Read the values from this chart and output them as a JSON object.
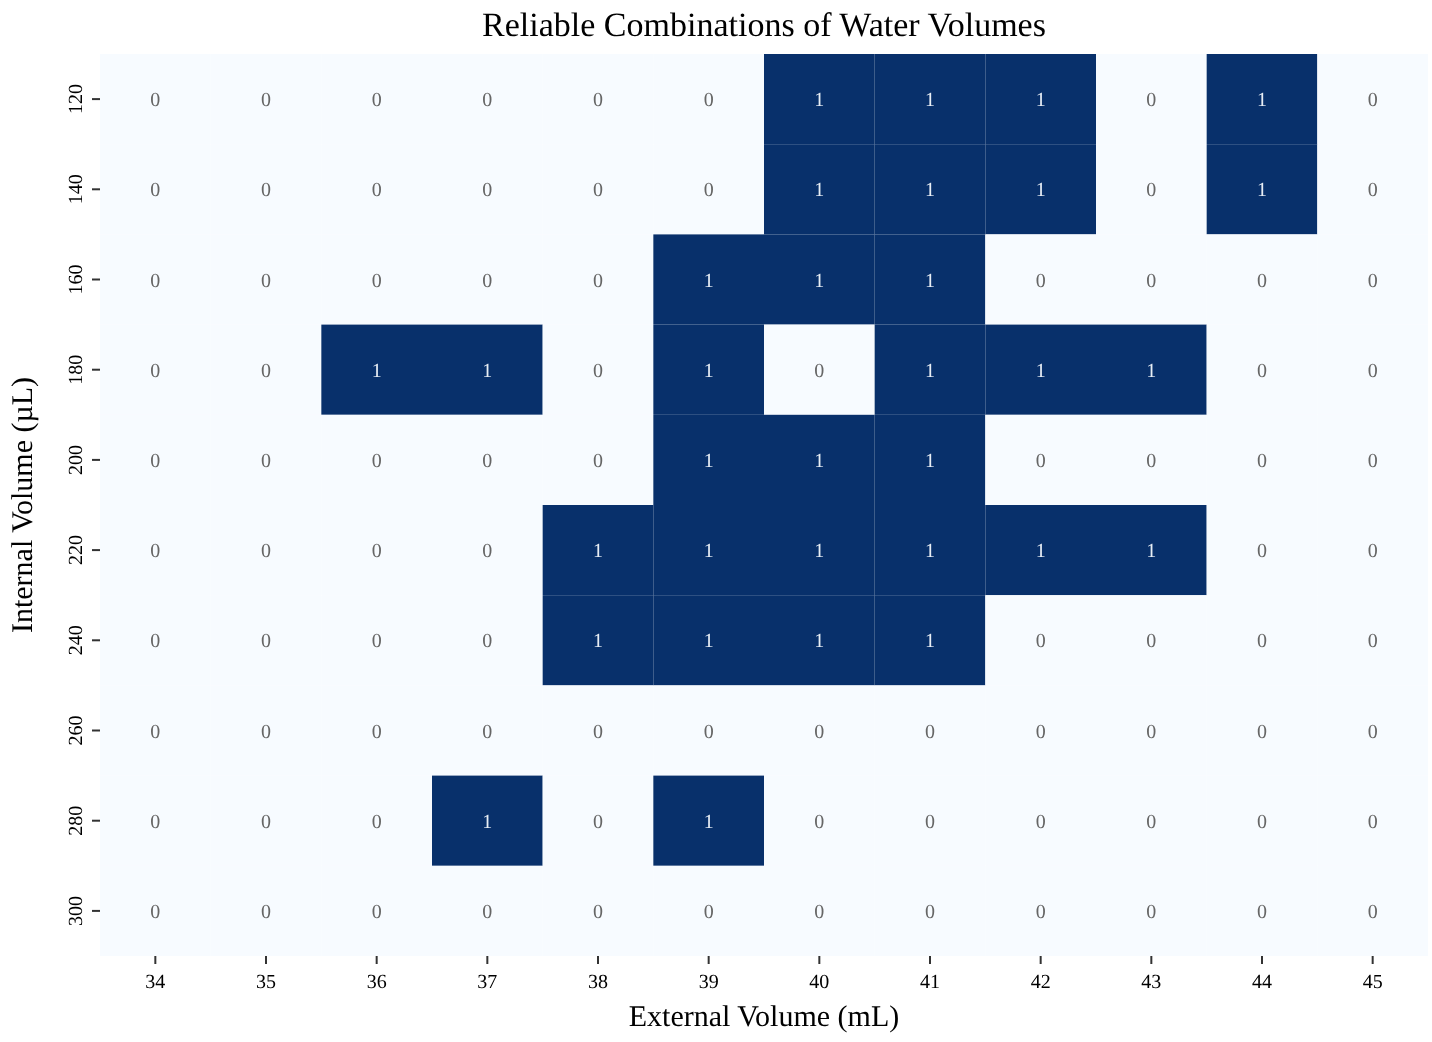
{
  "chart_data": {
    "type": "heatmap",
    "title": "Reliable Combinations of Water Volumes",
    "xlabel": "External Volume (mL)",
    "ylabel": "Internal Volume (µL)",
    "categories": [
      "34",
      "35",
      "36",
      "37",
      "38",
      "39",
      "40",
      "41",
      "42",
      "43",
      "44",
      "45"
    ],
    "y_categories": [
      "120",
      "140",
      "160",
      "180",
      "200",
      "220",
      "240",
      "260",
      "280",
      "300"
    ],
    "cells": [
      [
        0,
        0,
        0,
        0,
        0,
        0,
        1,
        1,
        1,
        0,
        1,
        0
      ],
      [
        0,
        0,
        0,
        0,
        0,
        0,
        1,
        1,
        1,
        0,
        1,
        0
      ],
      [
        0,
        0,
        0,
        0,
        0,
        1,
        1,
        1,
        0,
        0,
        0,
        0
      ],
      [
        0,
        0,
        1,
        1,
        0,
        1,
        0,
        1,
        1,
        1,
        0,
        0
      ],
      [
        0,
        0,
        0,
        0,
        0,
        1,
        1,
        1,
        0,
        0,
        0,
        0
      ],
      [
        0,
        0,
        0,
        0,
        1,
        1,
        1,
        1,
        1,
        1,
        0,
        0
      ],
      [
        0,
        0,
        0,
        0,
        1,
        1,
        1,
        1,
        0,
        0,
        0,
        0
      ],
      [
        0,
        0,
        0,
        0,
        0,
        0,
        0,
        0,
        0,
        0,
        0,
        0
      ],
      [
        0,
        0,
        0,
        1,
        0,
        1,
        0,
        0,
        0,
        0,
        0,
        0
      ],
      [
        0,
        0,
        0,
        0,
        0,
        0,
        0,
        0,
        0,
        0,
        0,
        0
      ]
    ],
    "colors": [
      "#f7fbff",
      "#08306b"
    ],
    "data_labels": true
  }
}
